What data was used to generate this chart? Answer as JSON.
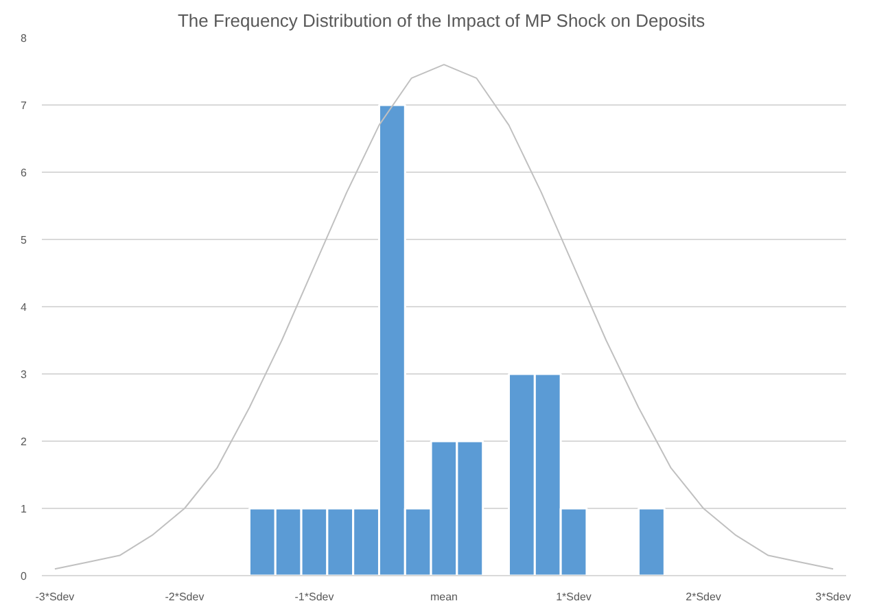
{
  "chart_data": {
    "type": "histogram",
    "title": "The Frequency Distribution of  the Impact of MP Shock on Deposits",
    "bins": [
      -1.5,
      -1.3,
      -1.1,
      -0.9,
      -0.7,
      -0.5,
      -0.3,
      -0.1,
      0.1,
      0.3,
      0.5,
      0.7,
      0.9,
      1.1,
      1.3,
      1.5,
      1.7
    ],
    "values": [
      1,
      1,
      1,
      1,
      1,
      7,
      1,
      2,
      2,
      0,
      3,
      3,
      1,
      0,
      0,
      1
    ],
    "color": "#5b9bd5",
    "series": [
      {
        "type": "line",
        "color": "#c0c0c0",
        "x": [
          -3,
          -2.75,
          -2.5,
          -2.25,
          -2,
          -1.75,
          -1.5,
          -1.25,
          -1,
          -0.75,
          -0.5,
          -0.25,
          0,
          0.25,
          0.5,
          0.75,
          1,
          1.25,
          1.5,
          1.75,
          2,
          2.25,
          2.5,
          2.75,
          3
        ],
        "values": [
          0.1,
          0.2,
          0.3,
          0.6,
          1.0,
          1.6,
          2.5,
          3.5,
          4.6,
          5.7,
          6.7,
          7.4,
          7.6,
          7.4,
          6.7,
          5.7,
          4.6,
          3.5,
          2.5,
          1.6,
          1.0,
          0.6,
          0.3,
          0.2,
          0.1
        ]
      }
    ],
    "xlim": [
      -3.1,
      3.1
    ],
    "xticks": [
      {
        "value": -3,
        "label": "-3*Sdev"
      },
      {
        "value": -2,
        "label": "-2*Sdev"
      },
      {
        "value": -1,
        "label": "-1*Sdev"
      },
      {
        "value": 0,
        "label": "mean"
      },
      {
        "value": 1,
        "label": "1*Sdev"
      },
      {
        "value": 2,
        "label": "2*Sdev"
      },
      {
        "value": 3,
        "label": "3*Sdev"
      }
    ],
    "ylim": [
      0,
      8
    ],
    "yticks": [
      0,
      1,
      2,
      3,
      4,
      5,
      6,
      7,
      8
    ],
    "grid": "y"
  }
}
